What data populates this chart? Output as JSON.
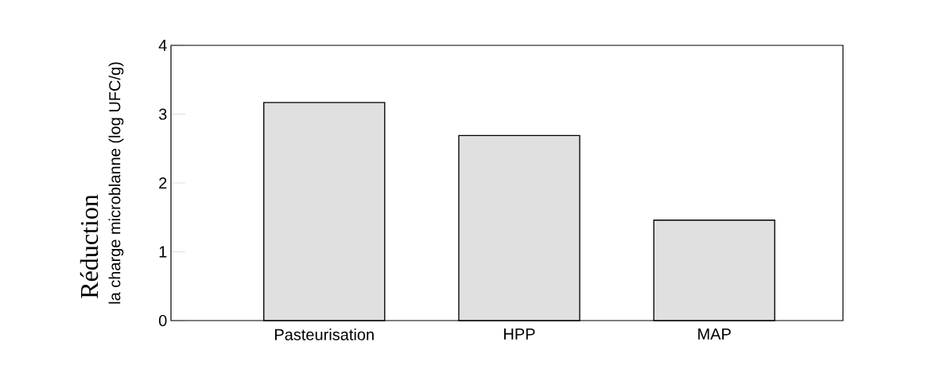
{
  "chart_data": {
    "type": "bar",
    "categories": [
      "Pasteurisation",
      "HPP",
      "MAP"
    ],
    "values": [
      3.17,
      2.69,
      1.46
    ],
    "color": "#e0e0e0",
    "ylabel": "la charge microblanne (log UFC/g)",
    "annotations": [
      "Réduction"
    ],
    "ylim": [
      0,
      4
    ],
    "yticks": [
      0,
      1,
      2,
      3,
      4
    ],
    "grid": false
  }
}
